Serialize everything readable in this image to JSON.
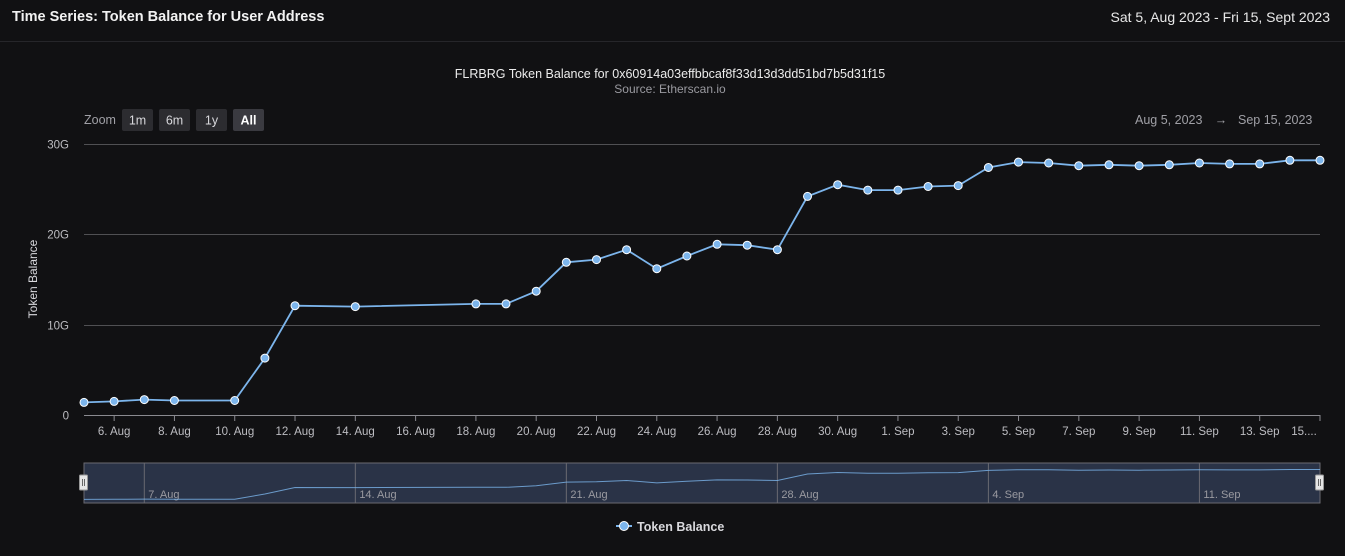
{
  "header": {
    "title": "Time Series: Token Balance for User Address",
    "date_range": "Sat 5, Aug 2023 - Fri 15, Sept 2023"
  },
  "chart": {
    "title": "FLRBRG Token Balance for 0x60914a03effbbcaf8f33d13d3dd51bd7b5d31f15",
    "subtitle": "Source: Etherscan.io",
    "zoom_label": "Zoom",
    "zoom_buttons": [
      "1m",
      "6m",
      "1y",
      "All"
    ],
    "zoom_selected": "All",
    "range_from": "Aug 5, 2023",
    "range_arrow": "→",
    "range_to": "Sep 15, 2023",
    "ylabel": "Token Balance",
    "navigator_labels": [
      "7. Aug",
      "14. Aug",
      "21. Aug",
      "28. Aug",
      "4. Sep",
      "11. Sep"
    ],
    "legend_label": "Token Balance"
  },
  "colors": {
    "background": "#111113",
    "series": "#7cb5ec",
    "grid": "#505053",
    "text": "#e0e0e3",
    "navigator_fill": "#2a3347"
  },
  "chart_data": {
    "type": "line",
    "title": "FLRBRG Token Balance for 0x60914a03effbbcaf8f33d13d3dd51bd7b5d31f15",
    "subtitle": "Source: Etherscan.io",
    "xlabel": "",
    "ylabel": "Token Balance",
    "ylim": [
      0,
      30000000000
    ],
    "yticks": [
      "0",
      "10G",
      "20G",
      "30G"
    ],
    "xlim": [
      "2023-08-05",
      "2023-09-15"
    ],
    "xticks": [
      "6. Aug",
      "8. Aug",
      "10. Aug",
      "12. Aug",
      "14. Aug",
      "16. Aug",
      "18. Aug",
      "20. Aug",
      "22. Aug",
      "24. Aug",
      "26. Aug",
      "28. Aug",
      "30. Aug",
      "1. Sep",
      "3. Sep",
      "5. Sep",
      "7. Sep",
      "9. Sep",
      "11. Sep",
      "13. Sep",
      "15...."
    ],
    "legend": "bottom-center",
    "grid": true,
    "series": [
      {
        "name": "Token Balance",
        "x": [
          "2023-08-05",
          "2023-08-06",
          "2023-08-07",
          "2023-08-08",
          "2023-08-10",
          "2023-08-11",
          "2023-08-12",
          "2023-08-14",
          "2023-08-18",
          "2023-08-19",
          "2023-08-20",
          "2023-08-21",
          "2023-08-22",
          "2023-08-23",
          "2023-08-24",
          "2023-08-25",
          "2023-08-26",
          "2023-08-27",
          "2023-08-28",
          "2023-08-29",
          "2023-08-30",
          "2023-08-31",
          "2023-09-01",
          "2023-09-02",
          "2023-09-03",
          "2023-09-04",
          "2023-09-05",
          "2023-09-06",
          "2023-09-07",
          "2023-09-08",
          "2023-09-09",
          "2023-09-10",
          "2023-09-11",
          "2023-09-12",
          "2023-09-13",
          "2023-09-14",
          "2023-09-15"
        ],
        "values": [
          1400000000,
          1500000000,
          1700000000,
          1600000000,
          1600000000,
          6300000000,
          12100000000,
          12000000000,
          12300000000,
          12300000000,
          13700000000,
          16900000000,
          17200000000,
          18300000000,
          16200000000,
          17600000000,
          18900000000,
          18800000000,
          18300000000,
          24200000000,
          25500000000,
          24900000000,
          24900000000,
          25300000000,
          25400000000,
          27400000000,
          28000000000,
          27900000000,
          27600000000,
          27700000000,
          27600000000,
          27700000000,
          27900000000,
          27800000000,
          27800000000,
          28200000000,
          28200000000
        ]
      }
    ]
  }
}
